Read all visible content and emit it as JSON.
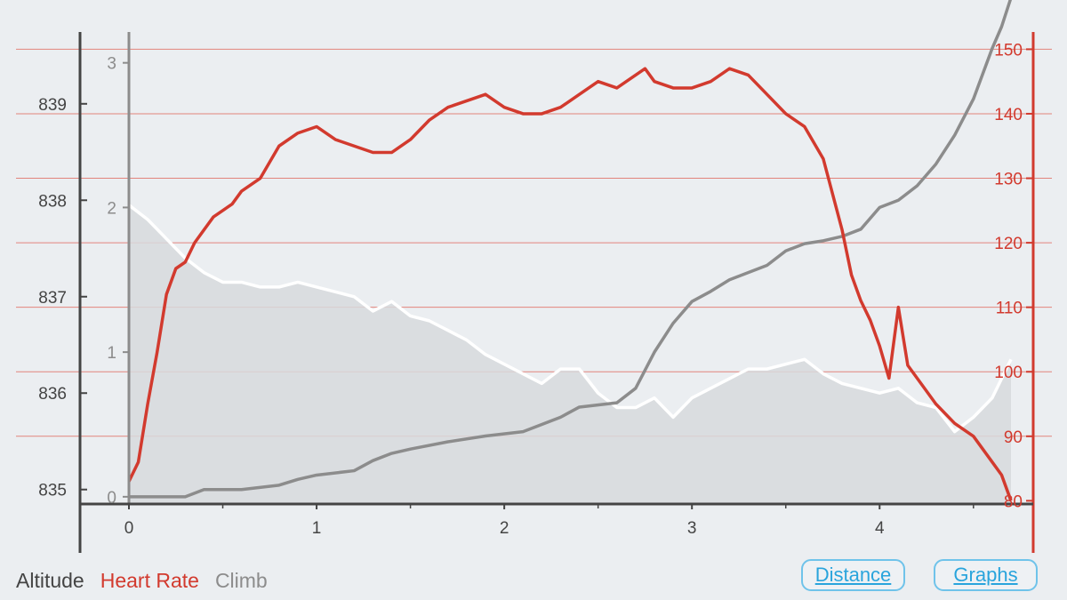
{
  "chart_data": {
    "type": "line",
    "x_ticks": [
      0,
      1,
      2,
      3,
      4
    ],
    "xlim": [
      0,
      4.7
    ],
    "series": [
      {
        "name": "Altitude",
        "axis": "altitude",
        "y_ticks": [
          835,
          836,
          837,
          838,
          839
        ],
        "ylim": [
          834.85,
          839.8
        ],
        "x": [
          0,
          0.1,
          0.2,
          0.3,
          0.4,
          0.5,
          0.6,
          0.7,
          0.8,
          0.9,
          1.0,
          1.1,
          1.2,
          1.3,
          1.4,
          1.5,
          1.6,
          1.7,
          1.8,
          1.9,
          2.0,
          2.1,
          2.2,
          2.3,
          2.4,
          2.5,
          2.6,
          2.7,
          2.8,
          2.9,
          3.0,
          3.1,
          3.2,
          3.3,
          3.4,
          3.5,
          3.6,
          3.7,
          3.8,
          3.9,
          4.0,
          4.1,
          4.2,
          4.3,
          4.4,
          4.5,
          4.6,
          4.7
        ],
        "values": [
          837.95,
          837.8,
          837.6,
          837.4,
          837.25,
          837.15,
          837.15,
          837.1,
          837.1,
          837.15,
          837.1,
          837.05,
          837.0,
          836.85,
          836.95,
          836.8,
          836.75,
          836.65,
          836.55,
          836.4,
          836.3,
          836.2,
          836.1,
          836.25,
          836.25,
          836.0,
          835.85,
          835.85,
          835.95,
          835.75,
          835.95,
          836.05,
          836.15,
          836.25,
          836.25,
          836.3,
          836.35,
          836.2,
          836.1,
          836.05,
          836.0,
          836.05,
          835.9,
          835.85,
          835.6,
          835.75,
          835.95,
          836.35
        ],
        "color": "#ffffff"
      },
      {
        "name": "Heart Rate",
        "axis": "heart_rate",
        "y_ticks": [
          80,
          90,
          100,
          110,
          120,
          130,
          140,
          150
        ],
        "ylim": [
          79.5,
          153.5
        ],
        "x": [
          0,
          0.05,
          0.1,
          0.15,
          0.2,
          0.25,
          0.3,
          0.35,
          0.4,
          0.45,
          0.5,
          0.55,
          0.6,
          0.7,
          0.8,
          0.9,
          1.0,
          1.1,
          1.2,
          1.3,
          1.4,
          1.5,
          1.6,
          1.7,
          1.8,
          1.9,
          2.0,
          2.1,
          2.2,
          2.3,
          2.4,
          2.5,
          2.6,
          2.7,
          2.75,
          2.8,
          2.9,
          3.0,
          3.1,
          3.2,
          3.3,
          3.4,
          3.5,
          3.6,
          3.7,
          3.8,
          3.85,
          3.9,
          3.95,
          4.0,
          4.05,
          4.1,
          4.15,
          4.2,
          4.3,
          4.4,
          4.5,
          4.55,
          4.6,
          4.65,
          4.7
        ],
        "values": [
          83,
          86,
          95,
          103,
          112,
          116,
          117,
          120,
          122,
          124,
          125,
          126,
          128,
          130,
          135,
          137,
          138,
          136,
          135,
          134,
          134,
          136,
          139,
          141,
          142,
          143,
          141,
          140,
          140,
          141,
          143,
          145,
          144,
          146,
          147,
          145,
          144,
          144,
          145,
          147,
          146,
          143,
          140,
          138,
          133,
          122,
          115,
          111,
          108,
          104,
          99,
          110,
          101,
          99,
          95,
          92,
          90,
          88,
          86,
          84,
          80
        ],
        "color": "#d23a2e"
      },
      {
        "name": "Climb",
        "axis": "climb",
        "y_ticks": [
          0,
          1,
          2,
          3
        ],
        "ylim": [
          -0.05,
          3.25
        ],
        "x": [
          0,
          0.3,
          0.4,
          0.6,
          0.8,
          0.9,
          1.0,
          1.2,
          1.3,
          1.4,
          1.5,
          1.7,
          1.9,
          2.1,
          2.2,
          2.3,
          2.4,
          2.6,
          2.7,
          2.8,
          2.9,
          3.0,
          3.1,
          3.2,
          3.3,
          3.4,
          3.5,
          3.6,
          3.7,
          3.8,
          3.9,
          4.0,
          4.1,
          4.2,
          4.3,
          4.4,
          4.5,
          4.6,
          4.65,
          4.7
        ],
        "values": [
          0.0,
          0.0,
          0.05,
          0.05,
          0.08,
          0.12,
          0.15,
          0.18,
          0.25,
          0.3,
          0.33,
          0.38,
          0.42,
          0.45,
          0.5,
          0.55,
          0.62,
          0.65,
          0.75,
          1.0,
          1.2,
          1.35,
          1.42,
          1.5,
          1.55,
          1.6,
          1.7,
          1.75,
          1.77,
          1.8,
          1.85,
          2.0,
          2.05,
          2.15,
          2.3,
          2.5,
          2.75,
          3.1,
          3.25,
          3.45
        ],
        "color": "#8c8c8c"
      }
    ],
    "legend": [
      "Altitude",
      "Heart Rate",
      "Climb"
    ],
    "legend_position": "bottom-left",
    "grid": "horizontal heart-rate lines"
  },
  "legend_labels": {
    "altitude": "Altitude",
    "heart_rate": "Heart Rate",
    "climb": "Climb"
  },
  "buttons": {
    "distance": "Distance",
    "graphs": "Graphs"
  },
  "colors": {
    "background": "#ebeef1",
    "altitude_axis": "#444444",
    "heart_rate": "#d23a2e",
    "climb": "#8c8c8c",
    "altitude_fill": "#d7d9dd",
    "button_border": "#6fc3ea",
    "button_text": "#29a4dc"
  }
}
